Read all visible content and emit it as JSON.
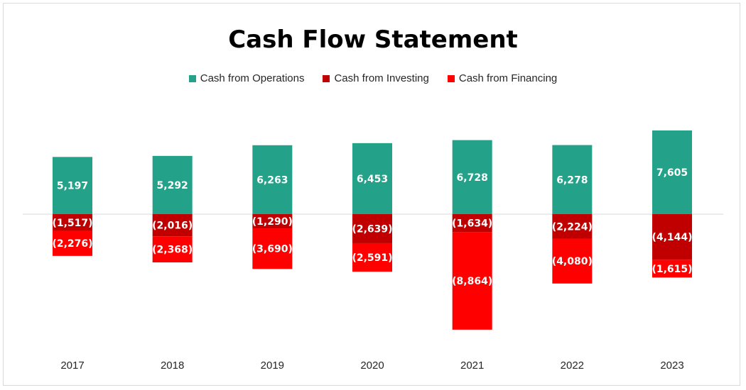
{
  "chart_data": {
    "type": "bar",
    "stacked": true,
    "title": "Cash Flow Statement",
    "xlabel": "",
    "ylabel": "",
    "categories": [
      "2017",
      "2018",
      "2019",
      "2020",
      "2021",
      "2022",
      "2023"
    ],
    "series": [
      {
        "name": "Cash from Operations",
        "color": "#24A189",
        "values": [
          5197,
          5292,
          6263,
          6453,
          6728,
          6278,
          7605
        ],
        "labels": [
          "5,197",
          "5,292",
          "6,263",
          "6,453",
          "6,728",
          "6,278",
          "7,605"
        ]
      },
      {
        "name": "Cash from Investing",
        "color": "#C00000",
        "values": [
          -1517,
          -2016,
          -1290,
          -2639,
          -1634,
          -2224,
          -4144
        ],
        "labels": [
          "(1,517)",
          "(2,016)",
          "(1,290)",
          "(2,639)",
          "(1,634)",
          "(2,224)",
          "(4,144)"
        ]
      },
      {
        "name": "Cash from Financing",
        "color": "#FF0000",
        "values": [
          -2276,
          -2368,
          -3690,
          -2591,
          -8864,
          -4080,
          -1615
        ],
        "labels": [
          "(2,276)",
          "(2,368)",
          "(3,690)",
          "(2,591)",
          "(8,864)",
          "(4,080)",
          "(1,615)"
        ]
      }
    ],
    "ylim": [
      -10500,
      7605
    ],
    "grid": false,
    "legend": "top",
    "axis_line_color": "#d9d9d9"
  }
}
